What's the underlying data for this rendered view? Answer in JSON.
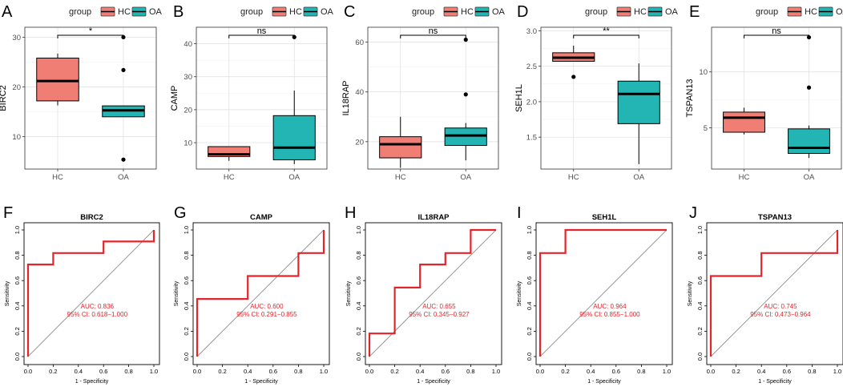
{
  "colors": {
    "hc": "#f07e75",
    "oa": "#22b5b3",
    "roc": "#e4242b",
    "grid": "#dedede",
    "diag": "#999999"
  },
  "legend": {
    "title": "group",
    "items": [
      "HC",
      "OA"
    ]
  },
  "chart_data": [
    {
      "panel": "A",
      "type": "box",
      "gene": "BIRC2",
      "ylabel": "BIRC2",
      "categories": [
        "HC",
        "OA"
      ],
      "ylim": [
        3.5,
        32
      ],
      "yticks": [
        10,
        20,
        30
      ],
      "significance": "*",
      "groups": [
        {
          "name": "HC",
          "q1": 17.2,
          "median": 21.2,
          "q3": 25.8,
          "whisker_low": 16.3,
          "whisker_high": 26.7,
          "outliers": []
        },
        {
          "name": "OA",
          "q1": 14.0,
          "median": 15.3,
          "q3": 16.2,
          "whisker_low": 14.0,
          "whisker_high": 16.2,
          "outliers": [
            5.4,
            23.4,
            30.0
          ]
        }
      ]
    },
    {
      "panel": "B",
      "type": "box",
      "gene": "CAMP",
      "ylabel": "CAMP",
      "categories": [
        "HC",
        "OA"
      ],
      "ylim": [
        2,
        45
      ],
      "yticks": [
        10,
        20,
        30,
        40
      ],
      "significance": "ns",
      "groups": [
        {
          "name": "HC",
          "q1": 5.8,
          "median": 6.5,
          "q3": 8.8,
          "whisker_low": 4.5,
          "whisker_high": 8.8,
          "outliers": []
        },
        {
          "name": "OA",
          "q1": 4.8,
          "median": 8.5,
          "q3": 18.2,
          "whisker_low": 3.5,
          "whisker_high": 25.8,
          "outliers": [
            42.0
          ]
        }
      ]
    },
    {
      "panel": "C",
      "type": "box",
      "gene": "IL18RAP",
      "ylabel": "IL18RAP",
      "categories": [
        "HC",
        "OA"
      ],
      "ylim": [
        9,
        66
      ],
      "yticks": [
        20,
        40,
        60
      ],
      "significance": "ns",
      "groups": [
        {
          "name": "HC",
          "q1": 13.5,
          "median": 19.0,
          "q3": 22.0,
          "whisker_low": 9.5,
          "whisker_high": 30.0,
          "outliers": []
        },
        {
          "name": "OA",
          "q1": 18.5,
          "median": 22.5,
          "q3": 25.5,
          "whisker_low": 12.5,
          "whisker_high": 27.5,
          "outliers": [
            39.0,
            61.0
          ]
        }
      ]
    },
    {
      "panel": "D",
      "type": "box",
      "gene": "SEH1L",
      "ylabel": "SEH1L",
      "categories": [
        "HC",
        "OA"
      ],
      "ylim": [
        1.05,
        3.05
      ],
      "yticks": [
        1.5,
        2.0,
        2.5,
        3.0
      ],
      "ytick_labels": [
        "1.5",
        "2.0",
        "2.5",
        "3.0"
      ],
      "significance": "**",
      "groups": [
        {
          "name": "HC",
          "q1": 2.57,
          "median": 2.62,
          "q3": 2.69,
          "whisker_low": 2.57,
          "whisker_high": 2.79,
          "outliers": [
            2.35
          ]
        },
        {
          "name": "OA",
          "q1": 1.69,
          "median": 2.11,
          "q3": 2.29,
          "whisker_low": 1.12,
          "whisker_high": 2.54,
          "outliers": []
        }
      ]
    },
    {
      "panel": "E",
      "type": "box",
      "gene": "TSPAN13",
      "ylabel": "TSPAN13",
      "categories": [
        "HC",
        "OA"
      ],
      "ylim": [
        1.3,
        14.0
      ],
      "yticks": [
        5,
        10
      ],
      "significance": "ns",
      "groups": [
        {
          "name": "HC",
          "q1": 4.6,
          "median": 5.9,
          "q3": 6.4,
          "whisker_low": 4.4,
          "whisker_high": 6.8,
          "outliers": []
        },
        {
          "name": "OA",
          "q1": 2.7,
          "median": 3.2,
          "q3": 4.9,
          "whisker_low": 2.3,
          "whisker_high": 5.2,
          "outliers": [
            8.6,
            13.1
          ]
        }
      ]
    },
    {
      "panel": "F",
      "type": "roc",
      "title": "BIRC2",
      "xlabel": "1 - Specificity",
      "ylabel": "Sensitivity",
      "auc": "AUC: 0.836",
      "ci": "95% CI: 0.618−1.000",
      "x": [
        0,
        0,
        0.2,
        0.2,
        0.6,
        0.6,
        1,
        1
      ],
      "y": [
        0,
        0.727,
        0.727,
        0.818,
        0.818,
        0.909,
        0.909,
        1
      ]
    },
    {
      "panel": "G",
      "type": "roc",
      "title": "CAMP",
      "xlabel": "1 - Specificity",
      "ylabel": "Sensitivity",
      "auc": "AUC: 0.600",
      "ci": "95% CI: 0.291−0.855",
      "x": [
        0,
        0,
        0.4,
        0.4,
        0.8,
        0.8,
        1,
        1
      ],
      "y": [
        0,
        0.455,
        0.455,
        0.636,
        0.636,
        0.818,
        0.818,
        1
      ]
    },
    {
      "panel": "H",
      "type": "roc",
      "title": "IL18RAP",
      "xlabel": "1 - Specificity",
      "ylabel": "Sensitivity",
      "auc": "AUC: 0.655",
      "ci": "95% CI: 0.345−0.927",
      "x": [
        0,
        0,
        0.2,
        0.2,
        0.4,
        0.4,
        0.6,
        0.6,
        0.8,
        0.8,
        1
      ],
      "y": [
        0,
        0.182,
        0.182,
        0.545,
        0.545,
        0.727,
        0.727,
        0.818,
        0.818,
        1,
        1
      ]
    },
    {
      "panel": "I",
      "type": "roc",
      "title": "SEH1L",
      "xlabel": "1 - Specificity",
      "ylabel": "Sensitivity",
      "auc": "AUC: 0.964",
      "ci": "95% CI: 0.855−1.000",
      "x": [
        0,
        0,
        0.2,
        0.2,
        1
      ],
      "y": [
        0,
        0.818,
        0.818,
        1,
        1
      ]
    },
    {
      "panel": "J",
      "type": "roc",
      "title": "TSPAN13",
      "xlabel": "1 - Specificity",
      "ylabel": "Sensitivity",
      "auc": "AUC: 0.745",
      "ci": "95% CI: 0.473−0.964",
      "x": [
        0,
        0,
        0.4,
        0.4,
        1,
        1
      ],
      "y": [
        0,
        0.636,
        0.636,
        0.818,
        0.818,
        1
      ]
    }
  ],
  "roc_ticks": [
    "0.0",
    "0.2",
    "0.4",
    "0.6",
    "0.8",
    "1.0"
  ]
}
